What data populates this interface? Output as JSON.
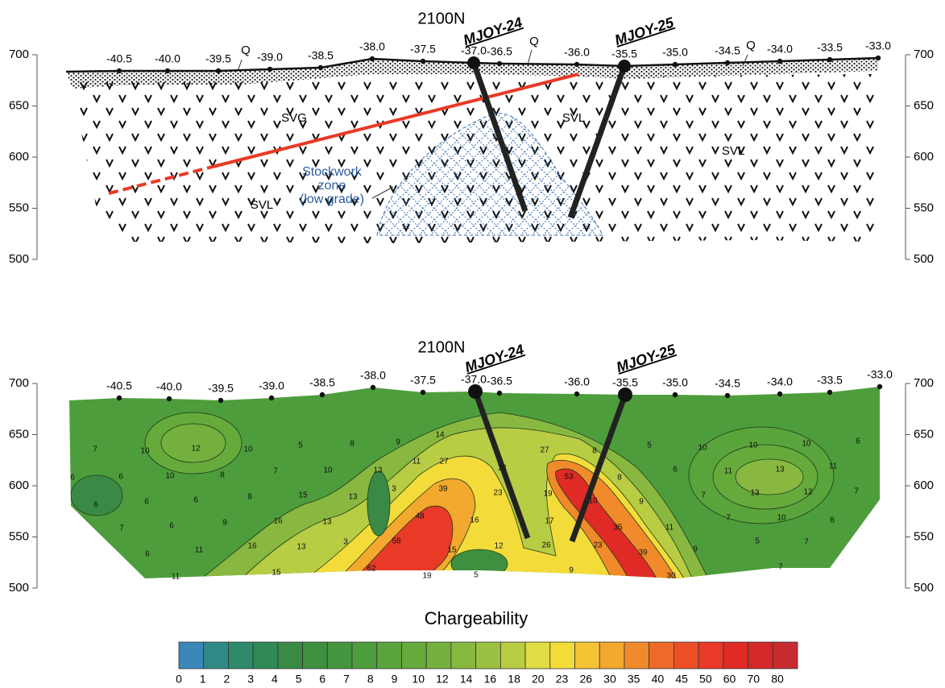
{
  "sections": [
    {
      "title": "2100N",
      "drillholes": [
        "MJOY-24",
        "MJOY-25"
      ],
      "stations": [
        "-40.5",
        "-40.0",
        "-39.5",
        "-39.0",
        "-38.5",
        "-38.0",
        "-37.5",
        "-37.0",
        "-36.5",
        "-36.0",
        "-35.5",
        "-35.0",
        "-34.5",
        "-34.0",
        "-33.5",
        "-33.0"
      ],
      "elevations": [
        700,
        650,
        600,
        550,
        500
      ],
      "units": [
        "Q",
        "Q",
        "Q",
        "SVG",
        "SVL",
        "SVL",
        "SVL"
      ],
      "zone_label": [
        "Stockwork",
        "zone",
        "(low grade)"
      ]
    },
    {
      "title": "2100N",
      "drillholes": [
        "MJOY-24",
        "MJOY-25"
      ],
      "stations": [
        "-40.5",
        "-40.0",
        "-39.5",
        "-39.0",
        "-38.5",
        "-38.0",
        "-37.5",
        "-37.0",
        "-36.5",
        "-36.0",
        "-35.5",
        "-35.0",
        "-34.5",
        "-34.0",
        "-33.5",
        "-33.0"
      ],
      "elevations": [
        700,
        650,
        600,
        550,
        500
      ],
      "contour_labels": [
        7,
        10,
        12,
        10,
        5,
        8,
        9,
        14,
        6,
        6,
        10,
        8,
        7,
        10,
        13,
        11,
        27,
        18,
        27,
        8,
        5,
        6,
        10,
        10,
        10,
        6,
        11,
        13,
        11,
        6,
        6,
        6,
        8,
        15,
        13,
        3,
        39,
        23,
        19,
        53,
        8,
        7,
        13,
        12,
        7,
        7,
        6,
        9,
        16,
        13,
        48,
        16,
        17,
        10,
        9,
        11,
        7,
        10,
        8,
        6,
        11,
        16,
        13,
        3,
        58,
        15,
        12,
        26,
        23,
        35,
        39,
        9,
        5,
        7,
        11,
        15,
        62,
        19,
        5,
        9,
        30,
        7
      ]
    }
  ],
  "legend": {
    "title": "Chargeability",
    "labels": [
      0,
      1,
      2,
      3,
      4,
      5,
      6,
      7,
      8,
      9,
      10,
      12,
      14,
      16,
      18,
      20,
      23,
      26,
      30,
      35,
      40,
      45,
      50,
      60,
      70,
      80
    ],
    "colors": [
      "#3a87b8",
      "#2f8a85",
      "#2e8a6a",
      "#2f8a55",
      "#3a8a45",
      "#3e9040",
      "#45963e",
      "#4e9d3c",
      "#5aa43c",
      "#66aa3c",
      "#74b03e",
      "#88b840",
      "#9cc042",
      "#b8cc44",
      "#e0dc44",
      "#f3dc3a",
      "#f5c434",
      "#f3a82e",
      "#f08a2a",
      "#ee6a28",
      "#ec4e26",
      "#e83a26",
      "#e02a26",
      "#d52828",
      "#c82a30"
    ]
  }
}
